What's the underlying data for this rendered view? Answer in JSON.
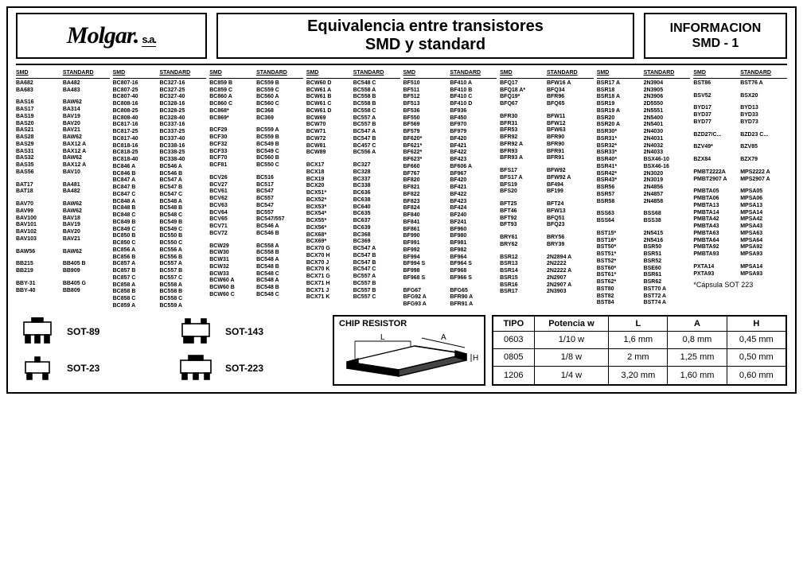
{
  "header": {
    "logo_main": "Molgar.",
    "logo_suffix": "s.a.",
    "title_line1": "Equivalencia entre transistores",
    "title_line2": "SMD y standard",
    "info_line1": "INFORMACION",
    "info_line2": "SMD - 1"
  },
  "col_headers": {
    "smd": "SMD",
    "std": "STANDARD"
  },
  "note": "*Cápsula SOT 223",
  "packages": {
    "p1": "SOT-89",
    "p2": "SOT-143",
    "p3": "SOT-23",
    "p4": "SOT-223"
  },
  "chip_resistor": {
    "label": "CHIP RESISTOR",
    "dim_L": "L",
    "dim_A": "A",
    "dim_H": "H",
    "headers": {
      "tipo": "TIPO",
      "pot": "Potencia w",
      "L": "L",
      "A": "A",
      "H": "H"
    },
    "rows": [
      {
        "tipo": "0603",
        "pot": "1/10 w",
        "L": "1,6 mm",
        "A": "0,8 mm",
        "H": "0,45 mm"
      },
      {
        "tipo": "0805",
        "pot": "1/8 w",
        "L": "2 mm",
        "A": "1,25 mm",
        "H": "0,50 mm"
      },
      {
        "tipo": "1206",
        "pot": "1/4 w",
        "L": "3,20 mm",
        "A": "1,60 mm",
        "H": "0,60 mm"
      }
    ]
  },
  "cols": [
    [
      [
        "BA682",
        "BA482"
      ],
      [
        "BA683",
        "BA483"
      ],
      [
        "",
        ""
      ],
      [
        "BAS16",
        "BAW62"
      ],
      [
        "BAS17",
        "BA314"
      ],
      [
        "BAS19",
        "BAV19"
      ],
      [
        "BAS20",
        "BAV20"
      ],
      [
        "BAS21",
        "BAV21"
      ],
      [
        "BAS28",
        "BAW62"
      ],
      [
        "BAS29",
        "BAX12 A"
      ],
      [
        "BAS31",
        "BAX12 A"
      ],
      [
        "BAS32",
        "BAW62"
      ],
      [
        "BAS35",
        "BAX12 A"
      ],
      [
        "BAS56",
        "BAV10"
      ],
      [
        "",
        ""
      ],
      [
        "BAT17",
        "BA481"
      ],
      [
        "BAT18",
        "BA482"
      ],
      [
        "",
        ""
      ],
      [
        "BAV70",
        "BAW62"
      ],
      [
        "BAV99",
        "BAW62"
      ],
      [
        "BAV100",
        "BAV18"
      ],
      [
        "BAV101",
        "BAV19"
      ],
      [
        "BAV102",
        "BAV20"
      ],
      [
        "BAV103",
        "BAV21"
      ],
      [
        "",
        ""
      ],
      [
        "BAW56",
        "BAW62"
      ],
      [
        "",
        ""
      ],
      [
        "BB215",
        "BB405 B"
      ],
      [
        "BB219",
        "BB909"
      ],
      [
        "",
        ""
      ],
      [
        "BBY-31",
        "BB405 G"
      ],
      [
        "BBY-40",
        "BB809"
      ]
    ],
    [
      [
        "BC807-16",
        "BC327-16"
      ],
      [
        "BC807-25",
        "BC327-25"
      ],
      [
        "BC807-40",
        "BC327-40"
      ],
      [
        "BC808-16",
        "BC328-16"
      ],
      [
        "BC808-25",
        "BC328-25"
      ],
      [
        "BC808-40",
        "BC328-40"
      ],
      [
        "BC817-16",
        "BC337-16"
      ],
      [
        "BC817-25",
        "BC337-25"
      ],
      [
        "BC817-40",
        "BC337-40"
      ],
      [
        "BC818-16",
        "BC338-16"
      ],
      [
        "BC818-25",
        "BC338-25"
      ],
      [
        "BC818-40",
        "BC338-40"
      ],
      [
        "BC846 A",
        "BC546 A"
      ],
      [
        "BC846 B",
        "BC546 B"
      ],
      [
        "BC847 A",
        "BC547 A"
      ],
      [
        "BC847 B",
        "BC547 B"
      ],
      [
        "BC847 C",
        "BC547 C"
      ],
      [
        "BC848 A",
        "BC548 A"
      ],
      [
        "BC848 B",
        "BC548 B"
      ],
      [
        "BC848 C",
        "BC548 C"
      ],
      [
        "BC849 B",
        "BC549 B"
      ],
      [
        "BC849 C",
        "BC549 C"
      ],
      [
        "BC850 B",
        "BC550 B"
      ],
      [
        "BC850 C",
        "BC550 C"
      ],
      [
        "BC856 A",
        "BC556 A"
      ],
      [
        "BC856 B",
        "BC556 B"
      ],
      [
        "BC857 A",
        "BC557 A"
      ],
      [
        "BC857 B",
        "BC557 B"
      ],
      [
        "BC857 C",
        "BC557 C"
      ],
      [
        "BC858 A",
        "BC558 A"
      ],
      [
        "BC858 B",
        "BC558 B"
      ],
      [
        "BC858 C",
        "BC558 C"
      ],
      [
        "BC859 A",
        "BC559 A"
      ]
    ],
    [
      [
        "BC859 B",
        "BC559 B"
      ],
      [
        "BC859 C",
        "BC559 C"
      ],
      [
        "BC860 A",
        "BC560 A"
      ],
      [
        "BC860 C",
        "BC560 C"
      ],
      [
        "BC868*",
        "BC368"
      ],
      [
        "BC869*",
        "BC369"
      ],
      [
        "",
        ""
      ],
      [
        "BCF29",
        "BC559 A"
      ],
      [
        "BCF30",
        "BC559 B"
      ],
      [
        "BCF32",
        "BC549 B"
      ],
      [
        "BCF33",
        "BC549 C"
      ],
      [
        "BCF70",
        "BC560 B"
      ],
      [
        "BCF81",
        "BC550 C"
      ],
      [
        "",
        ""
      ],
      [
        "BCV26",
        "BC516"
      ],
      [
        "BCV27",
        "BC517"
      ],
      [
        "BCV61",
        "BC547"
      ],
      [
        "BCV62",
        "BC557"
      ],
      [
        "BCV63",
        "BC547"
      ],
      [
        "BCV64",
        "BC557"
      ],
      [
        "BCV65",
        "BC547/557"
      ],
      [
        "BCV71",
        "BC546 A"
      ],
      [
        "BCV72",
        "BC546 B"
      ],
      [
        "",
        ""
      ],
      [
        "BCW29",
        "BC558 A"
      ],
      [
        "BCW30",
        "BC558 B"
      ],
      [
        "BCW31",
        "BC548 A"
      ],
      [
        "BCW32",
        "BC548 B"
      ],
      [
        "BCW33",
        "BC548 C"
      ],
      [
        "BCW60 A",
        "BC548 A"
      ],
      [
        "BCW60 B",
        "BC548 B"
      ],
      [
        "BCW60 C",
        "BC548 C"
      ]
    ],
    [
      [
        "BCW60 D",
        "BC548 C"
      ],
      [
        "BCW61 A",
        "BC558 A"
      ],
      [
        "BCW61 B",
        "BC558 B"
      ],
      [
        "BCW61 C",
        "BC558 B"
      ],
      [
        "BCW61 D",
        "BC558 C"
      ],
      [
        "BCW69",
        "BC557 A"
      ],
      [
        "BCW70",
        "BC557 B"
      ],
      [
        "BCW71",
        "BC547 A"
      ],
      [
        "BCW72",
        "BC547 B"
      ],
      [
        "BCW81",
        "BC457 C"
      ],
      [
        "BCW89",
        "BC556 A"
      ],
      [
        "",
        ""
      ],
      [
        "BCX17",
        "BC327"
      ],
      [
        "BCX18",
        "BC328"
      ],
      [
        "BCX19",
        "BC337"
      ],
      [
        "BCX20",
        "BC338"
      ],
      [
        "BCX51*",
        "BC636"
      ],
      [
        "BCX52*",
        "BC638"
      ],
      [
        "BCX53*",
        "BC640"
      ],
      [
        "BCX54*",
        "BC635"
      ],
      [
        "BCX55*",
        "BC637"
      ],
      [
        "BCX56*",
        "BC639"
      ],
      [
        "BCX68*",
        "BC368"
      ],
      [
        "BCX69*",
        "BC369"
      ],
      [
        "BCX70 G",
        "BC547 A"
      ],
      [
        "BCX70 H",
        "BC547 B"
      ],
      [
        "BCX70 J",
        "BC547 B"
      ],
      [
        "BCX70 K",
        "BC547 C"
      ],
      [
        "BCX71 G",
        "BC557 A"
      ],
      [
        "BCX71 H",
        "BC557 B"
      ],
      [
        "BCX71 J",
        "BC557 B"
      ],
      [
        "BCX71 K",
        "BC557 C"
      ]
    ],
    [
      [
        "BF510",
        "BF410 A"
      ],
      [
        "BF511",
        "BF410 B"
      ],
      [
        "BF512",
        "BF410 C"
      ],
      [
        "BF513",
        "BF410 D"
      ],
      [
        "BF536",
        "BF936"
      ],
      [
        "BF550",
        "BF450"
      ],
      [
        "BF569",
        "BF970"
      ],
      [
        "BF579",
        "BF979"
      ],
      [
        "BF620*",
        "BF420"
      ],
      [
        "BF621*",
        "BF421"
      ],
      [
        "BF622*",
        "BF422"
      ],
      [
        "BF623*",
        "BF423"
      ],
      [
        "BF660",
        "BF606 A"
      ],
      [
        "BF767",
        "BF967"
      ],
      [
        "BF820",
        "BF420"
      ],
      [
        "BF821",
        "BF421"
      ],
      [
        "BF822",
        "BF422"
      ],
      [
        "BF823",
        "BF423"
      ],
      [
        "BF824",
        "BF424"
      ],
      [
        "BF840",
        "BF240"
      ],
      [
        "BF841",
        "BF241"
      ],
      [
        "BF861",
        "BF960"
      ],
      [
        "BF990",
        "BF980"
      ],
      [
        "BF991",
        "BF981"
      ],
      [
        "BF992",
        "BF982"
      ],
      [
        "BF994",
        "BF964"
      ],
      [
        "BF994 S",
        "BF964 S"
      ],
      [
        "BF998",
        "BF968"
      ],
      [
        "BF968 S",
        "BF966 S"
      ],
      [
        "",
        ""
      ],
      [
        "BFG67",
        "BFG65"
      ],
      [
        "BFG92 A",
        "BFR90 A"
      ],
      [
        "BFG93 A",
        "BFR91 A"
      ]
    ],
    [
      [
        "BFQ17",
        "BFW16 A"
      ],
      [
        "BFQ18 A*",
        "BFQ34"
      ],
      [
        "BFQ19*",
        "BFR96"
      ],
      [
        "BFQ67",
        "BFQ65"
      ],
      [
        "",
        ""
      ],
      [
        "BFR30",
        "BFW11"
      ],
      [
        "BFR31",
        "BFW12"
      ],
      [
        "BFR53",
        "BFW63"
      ],
      [
        "BFR92",
        "BFR90"
      ],
      [
        "BFR92 A",
        "BFR90"
      ],
      [
        "BFR93",
        "BFR91"
      ],
      [
        "BFR93 A",
        "BFR91"
      ],
      [
        "",
        ""
      ],
      [
        "BFS17",
        "BFW92"
      ],
      [
        "BFS17 A",
        "BFW92 A"
      ],
      [
        "BFS19",
        "BF494"
      ],
      [
        "BFS20",
        "BF199"
      ],
      [
        "",
        ""
      ],
      [
        "BFT25",
        "BFT24"
      ],
      [
        "BFT46",
        "BFW13"
      ],
      [
        "BFT92",
        "BFQ51"
      ],
      [
        "BFT93",
        "BFQ23"
      ],
      [
        "",
        ""
      ],
      [
        "BRY61",
        "BRY56"
      ],
      [
        "BRY62",
        "BRY39"
      ],
      [
        "",
        ""
      ],
      [
        "BSR12",
        "2N2894 A"
      ],
      [
        "BSR13",
        "2N2222"
      ],
      [
        "BSR14",
        "2N2222 A"
      ],
      [
        "BSR15",
        "2N2907"
      ],
      [
        "BSR16",
        "2N2907 A"
      ],
      [
        "BSR17",
        "2N3903"
      ]
    ],
    [
      [
        "BSR17 A",
        "2N3904"
      ],
      [
        "BSR18",
        "2N3905"
      ],
      [
        "BSR18 A",
        "2N3906"
      ],
      [
        "BSR19",
        "2D5550"
      ],
      [
        "BSR19 A",
        "2N5551"
      ],
      [
        "BSR20",
        "2N5400"
      ],
      [
        "BSR20 A",
        "2N5401"
      ],
      [
        "BSR30*",
        "2N4030"
      ],
      [
        "BSR31*",
        "2N4031"
      ],
      [
        "BSR32*",
        "2N4032"
      ],
      [
        "BSR33*",
        "2N4033"
      ],
      [
        "BSR40*",
        "BSX46-10"
      ],
      [
        "BSR41*",
        "BSX46-16"
      ],
      [
        "BSR42*",
        "2N3020"
      ],
      [
        "BSR43*",
        "2N3019"
      ],
      [
        "BSR56",
        "2N4856"
      ],
      [
        "BSR57",
        "2N4857"
      ],
      [
        "BSR58",
        "2N4858"
      ],
      [
        "",
        ""
      ],
      [
        "BSS63",
        "BSS68"
      ],
      [
        "BSS64",
        "BSS38"
      ],
      [
        "",
        ""
      ],
      [
        "BST15*",
        "2N5415"
      ],
      [
        "BST16*",
        "2N5416"
      ],
      [
        "BST50*",
        "BSR50"
      ],
      [
        "BST51*",
        "BSR51"
      ],
      [
        "BST52*",
        "BSR52"
      ],
      [
        "BST60*",
        "BSE60"
      ],
      [
        "BST61*",
        "BSR61"
      ],
      [
        "BST62*",
        "BSR62"
      ],
      [
        "BST80",
        "BST70 A"
      ],
      [
        "BST82",
        "BST72 A"
      ],
      [
        "BST84",
        "BST74 A"
      ]
    ],
    [
      [
        "BST86",
        "BST76 A"
      ],
      [
        "",
        ""
      ],
      [
        "BSV52",
        "BSX20"
      ],
      [
        "",
        ""
      ],
      [
        "BYD17",
        "BYD13"
      ],
      [
        "BYD37",
        "BYD33"
      ],
      [
        "BYD77",
        "BYD73"
      ],
      [
        "",
        ""
      ],
      [
        "BZD27/C...",
        "BZD23 C..."
      ],
      [
        "",
        ""
      ],
      [
        "BZV49*",
        "BZV85"
      ],
      [
        "",
        ""
      ],
      [
        "BZX84",
        "BZX79"
      ],
      [
        "",
        ""
      ],
      [
        "PMBT2222A",
        "MPS2222 A"
      ],
      [
        "PMBT2907 A",
        "MPS2907 A"
      ],
      [
        "",
        ""
      ],
      [
        "PMBTA05",
        "MPSA05"
      ],
      [
        "PMBTA06",
        "MPSA06"
      ],
      [
        "PMBTA13",
        "MPSA13"
      ],
      [
        "PMBTA14",
        "MPSA14"
      ],
      [
        "PMBTA42",
        "MPSA42"
      ],
      [
        "PMBTA43",
        "MPSA43"
      ],
      [
        "PMBTA63",
        "MPSA63"
      ],
      [
        "PMBTA64",
        "MPSA64"
      ],
      [
        "PMBTA92",
        "MPSA92"
      ],
      [
        "PMBTA93",
        "MPSA93"
      ],
      [
        "",
        ""
      ],
      [
        "PXTA14",
        "MPSA14"
      ],
      [
        "PXTA93",
        "MPSA93"
      ]
    ]
  ]
}
